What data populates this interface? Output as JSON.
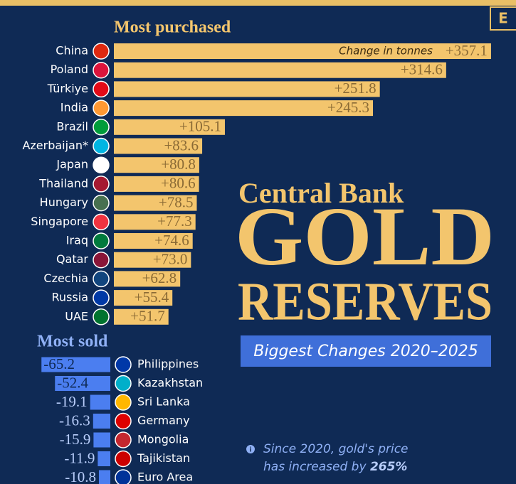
{
  "logo": "E",
  "headline": {
    "kicker": "Central Bank",
    "line1": "GOLD",
    "line2": "RESERVES",
    "subtitle": "Biggest Changes 2020–2025"
  },
  "note": [
    "Since 2020, gold's price",
    "has increased by",
    "265%"
  ],
  "chart_data": [
    {
      "type": "bar",
      "title": "Most purchased",
      "annotation": "Change in tonnes",
      "color": "#f3c56d",
      "categories": [
        "China",
        "Poland",
        "Türkiye",
        "India",
        "Brazil",
        "Azerbaijan*",
        "Japan",
        "Thailand",
        "Hungary",
        "Singapore",
        "Iraq",
        "Qatar",
        "Czechia",
        "Russia",
        "UAE"
      ],
      "values": [
        357.1,
        314.6,
        251.8,
        245.3,
        105.1,
        83.6,
        80.8,
        80.6,
        78.5,
        77.3,
        74.6,
        73.0,
        62.8,
        55.4,
        51.7
      ],
      "value_labels": [
        "+357.1",
        "+314.6",
        "+251.8",
        "+245.3",
        "+105.1",
        "+83.6",
        "+80.8",
        "+80.6",
        "+78.5",
        "+77.3",
        "+74.6",
        "+73.0",
        "+62.8",
        "+55.4",
        "+51.7"
      ]
    },
    {
      "type": "bar",
      "title": "Most sold",
      "color": "#4b7ef0",
      "categories": [
        "Philippines",
        "Kazakhstan",
        "Sri Lanka",
        "Germany",
        "Mongolia",
        "Tajikistan",
        "Euro Area"
      ],
      "values": [
        -65.2,
        -52.4,
        -19.1,
        -16.3,
        -15.9,
        -11.9,
        -10.8
      ]
    }
  ]
}
